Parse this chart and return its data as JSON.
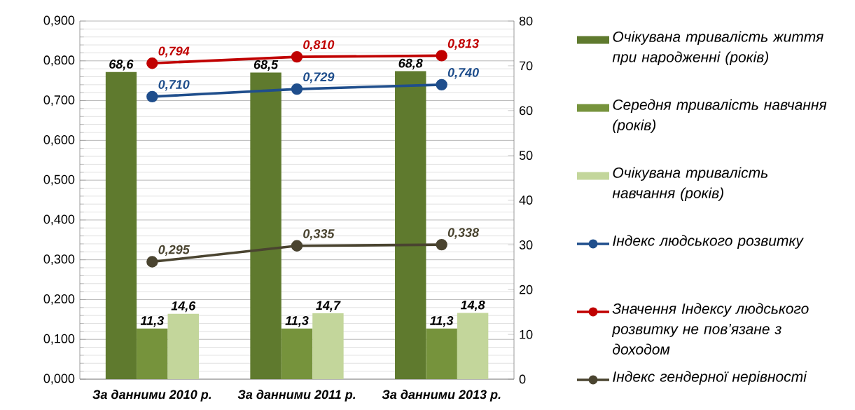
{
  "chart_data": {
    "type": "bar",
    "categories": [
      "За данними 2010 р.",
      "За данними 2011 р.",
      "За данними 2013 р."
    ],
    "series": [
      {
        "name": "Очікувана тривалість життя при народженні (років)",
        "color": "#5f7a2e",
        "axis": "y2",
        "values": [
          68.6,
          68.5,
          68.8
        ],
        "value_labels": [
          "68,6",
          "68,5",
          "68,8"
        ]
      },
      {
        "name": "Середня тривалість навчання (років)",
        "color": "#76933c",
        "axis": "y2",
        "values": [
          11.3,
          11.3,
          11.3
        ],
        "value_labels": [
          "11,3",
          "11,3",
          "11,3"
        ]
      },
      {
        "name": "Очікувана тривалість навчання (років)",
        "color": "#c3d69b",
        "axis": "y2",
        "values": [
          14.6,
          14.7,
          14.8
        ],
        "value_labels": [
          "14,6",
          "14,7",
          "14,8"
        ]
      },
      {
        "name": "Індекс людського розвитку",
        "type": "line",
        "color": "#1f4e8c",
        "values": [
          0.71,
          0.729,
          0.74
        ],
        "value_labels": [
          "0,710",
          "0,729",
          "0,740"
        ]
      },
      {
        "name": "Значення Індексу людського розвитку не пов’язане з доходом",
        "type": "line",
        "color": "#c00000",
        "values": [
          0.794,
          0.81,
          0.813
        ],
        "value_labels": [
          "0,794",
          "0,810",
          "0,813"
        ]
      },
      {
        "name": "Індекс гендерної нерівності",
        "type": "line",
        "color": "#4a4430",
        "values": [
          0.295,
          0.335,
          0.338
        ],
        "value_labels": [
          "0,295",
          "0,335",
          "0,338"
        ]
      }
    ],
    "ylim": [
      0,
      0.9
    ],
    "yticks": [
      {
        "value": 0,
        "label": "0,000"
      },
      {
        "value": 0.1,
        "label": "0,100"
      },
      {
        "value": 0.2,
        "label": "0,200"
      },
      {
        "value": 0.3,
        "label": "0,300"
      },
      {
        "value": 0.4,
        "label": "0,400"
      },
      {
        "value": 0.5,
        "label": "0,500"
      },
      {
        "value": 0.6,
        "label": "0,600"
      },
      {
        "value": 0.7,
        "label": "0,700"
      },
      {
        "value": 0.8,
        "label": "0,800"
      },
      {
        "value": 0.9,
        "label": "0,900"
      }
    ],
    "y2lim": [
      0,
      80
    ],
    "y2ticks": [
      0,
      10,
      20,
      30,
      40,
      50,
      60,
      70,
      80
    ],
    "grid": true,
    "legend": "right",
    "marker": "circle"
  }
}
